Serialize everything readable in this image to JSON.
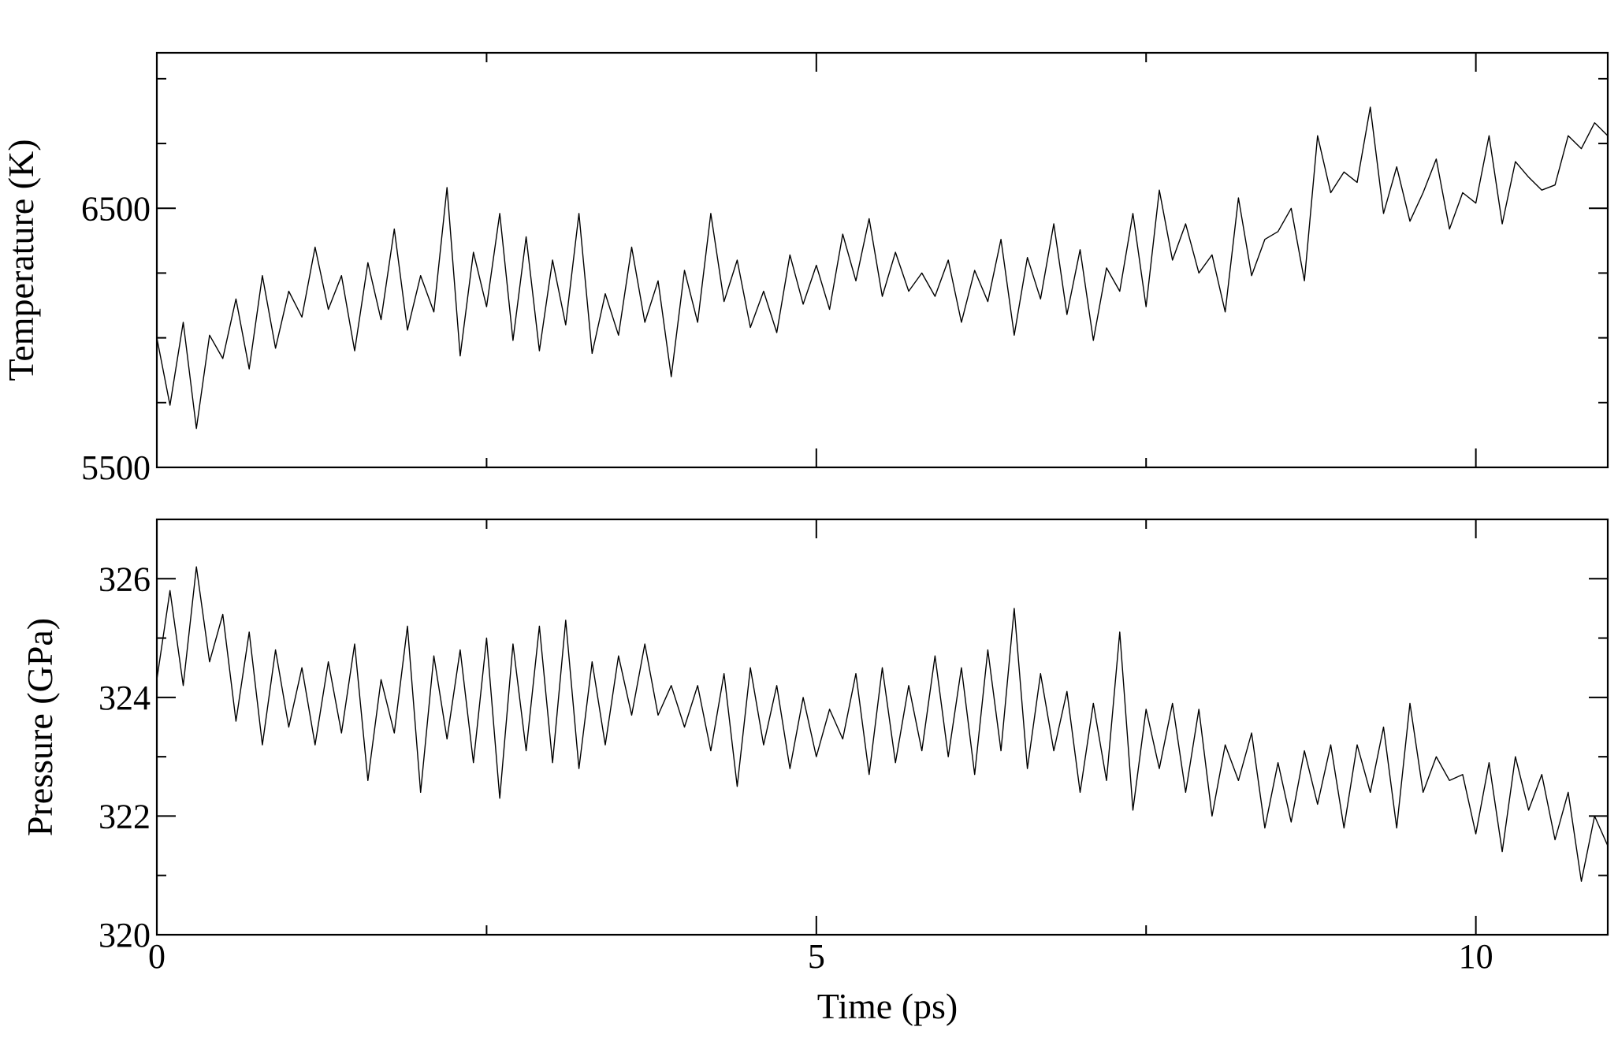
{
  "chart_data": [
    {
      "type": "line",
      "title": "",
      "xlabel": "",
      "ylabel": "Temperature (K)",
      "xlim": [
        0,
        11
      ],
      "ylim": [
        5500,
        7100
      ],
      "x_ticks": [
        0,
        5,
        10
      ],
      "x_tick_labels": [],
      "y_ticks": [
        5500,
        6500
      ],
      "y_tick_labels": [
        "5500",
        "6500"
      ],
      "grid": false,
      "legend": "none",
      "series": [
        {
          "color": "#000000",
          "x": [
            0,
            0.1,
            0.2,
            0.3,
            0.4,
            0.5,
            0.6,
            0.7,
            0.8,
            0.9,
            1.0,
            1.1,
            1.2,
            1.3,
            1.4,
            1.5,
            1.6,
            1.7,
            1.8,
            1.9,
            2.0,
            2.1,
            2.2,
            2.3,
            2.4,
            2.5,
            2.6,
            2.7,
            2.8,
            2.9,
            3.0,
            3.1,
            3.2,
            3.3,
            3.4,
            3.5,
            3.6,
            3.7,
            3.8,
            3.9,
            4.0,
            4.1,
            4.2,
            4.3,
            4.4,
            4.5,
            4.6,
            4.7,
            4.8,
            4.9,
            5.0,
            5.1,
            5.2,
            5.3,
            5.4,
            5.5,
            5.6,
            5.7,
            5.8,
            5.9,
            6.0,
            6.1,
            6.2,
            6.3,
            6.4,
            6.5,
            6.6,
            6.7,
            6.8,
            6.9,
            7.0,
            7.1,
            7.2,
            7.3,
            7.4,
            7.5,
            7.6,
            7.7,
            7.8,
            7.9,
            8.0,
            8.1,
            8.2,
            8.3,
            8.4,
            8.5,
            8.6,
            8.7,
            8.8,
            8.9,
            9.0,
            9.1,
            9.2,
            9.3,
            9.4,
            9.5,
            9.6,
            9.7,
            9.8,
            9.9,
            10.0,
            10.1,
            10.2,
            10.3,
            10.4,
            10.5,
            10.6,
            10.7,
            10.8,
            10.9,
            11.0
          ],
          "y": [
            6000,
            5740,
            6060,
            5650,
            6010,
            5920,
            6150,
            5880,
            6240,
            5960,
            6180,
            6080,
            6350,
            6110,
            6240,
            5950,
            6290,
            6070,
            6420,
            6030,
            6240,
            6100,
            6580,
            5930,
            6330,
            6120,
            6480,
            5990,
            6390,
            5950,
            6300,
            6050,
            6480,
            5940,
            6170,
            6010,
            6350,
            6060,
            6220,
            5850,
            6260,
            6060,
            6480,
            6140,
            6300,
            6040,
            6180,
            6020,
            6320,
            6130,
            6280,
            6110,
            6400,
            6220,
            6460,
            6160,
            6330,
            6180,
            6250,
            6160,
            6300,
            6060,
            6260,
            6140,
            6380,
            6010,
            6310,
            6150,
            6440,
            6090,
            6340,
            5990,
            6270,
            6180,
            6480,
            6120,
            6570,
            6300,
            6440,
            6250,
            6320,
            6100,
            6540,
            6240,
            6380,
            6410,
            6500,
            6220,
            6780,
            6560,
            6640,
            6600,
            6890,
            6480,
            6660,
            6450,
            6560,
            6690,
            6420,
            6560,
            6520,
            6780,
            6440,
            6680,
            6620,
            6570,
            6590,
            6780,
            6730,
            6830,
            6780
          ]
        }
      ]
    },
    {
      "type": "line",
      "title": "",
      "xlabel": "Time (ps)",
      "ylabel": "Pressure (GPa)",
      "xlim": [
        0,
        11
      ],
      "ylim": [
        320,
        327
      ],
      "x_ticks": [
        0,
        5,
        10
      ],
      "x_tick_labels": [
        "0",
        "5",
        "10"
      ],
      "y_ticks": [
        320,
        322,
        324,
        326
      ],
      "y_tick_labels": [
        "320",
        "322",
        "324",
        "326"
      ],
      "grid": false,
      "legend": "none",
      "series": [
        {
          "color": "#000000",
          "x": [
            0,
            0.1,
            0.2,
            0.3,
            0.4,
            0.5,
            0.6,
            0.7,
            0.8,
            0.9,
            1.0,
            1.1,
            1.2,
            1.3,
            1.4,
            1.5,
            1.6,
            1.7,
            1.8,
            1.9,
            2.0,
            2.1,
            2.2,
            2.3,
            2.4,
            2.5,
            2.6,
            2.7,
            2.8,
            2.9,
            3.0,
            3.1,
            3.2,
            3.3,
            3.4,
            3.5,
            3.6,
            3.7,
            3.8,
            3.9,
            4.0,
            4.1,
            4.2,
            4.3,
            4.4,
            4.5,
            4.6,
            4.7,
            4.8,
            4.9,
            5.0,
            5.1,
            5.2,
            5.3,
            5.4,
            5.5,
            5.6,
            5.7,
            5.8,
            5.9,
            6.0,
            6.1,
            6.2,
            6.3,
            6.4,
            6.5,
            6.6,
            6.7,
            6.8,
            6.9,
            7.0,
            7.1,
            7.2,
            7.3,
            7.4,
            7.5,
            7.6,
            7.7,
            7.8,
            7.9,
            8.0,
            8.1,
            8.2,
            8.3,
            8.4,
            8.5,
            8.6,
            8.7,
            8.8,
            8.9,
            9.0,
            9.1,
            9.2,
            9.3,
            9.4,
            9.5,
            9.6,
            9.7,
            9.8,
            9.9,
            10.0,
            10.1,
            10.2,
            10.3,
            10.4,
            10.5,
            10.6,
            10.7,
            10.8,
            10.9,
            11.0
          ],
          "y": [
            324.3,
            325.8,
            324.2,
            326.2,
            324.6,
            325.4,
            323.6,
            325.1,
            323.2,
            324.8,
            323.5,
            324.5,
            323.2,
            324.6,
            323.4,
            324.9,
            322.6,
            324.3,
            323.4,
            325.2,
            322.4,
            324.7,
            323.3,
            324.8,
            322.9,
            325.0,
            322.3,
            324.9,
            323.1,
            325.2,
            322.9,
            325.3,
            322.8,
            324.6,
            323.2,
            324.7,
            323.7,
            324.9,
            323.7,
            324.2,
            323.5,
            324.2,
            323.1,
            324.4,
            322.5,
            324.5,
            323.2,
            324.2,
            322.8,
            324.0,
            323.0,
            323.8,
            323.3,
            324.4,
            322.7,
            324.5,
            322.9,
            324.2,
            323.1,
            324.7,
            323.0,
            324.5,
            322.7,
            324.8,
            323.1,
            325.5,
            322.8,
            324.4,
            323.1,
            324.1,
            322.4,
            323.9,
            322.6,
            325.1,
            322.1,
            323.8,
            322.8,
            323.9,
            322.4,
            323.8,
            322.0,
            323.2,
            322.6,
            323.4,
            321.8,
            322.9,
            321.9,
            323.1,
            322.2,
            323.2,
            321.8,
            323.2,
            322.4,
            323.5,
            321.8,
            323.9,
            322.4,
            323.0,
            322.6,
            322.7,
            321.7,
            322.9,
            321.4,
            323.0,
            322.1,
            322.7,
            321.6,
            322.4,
            320.9,
            322.0,
            321.5
          ]
        }
      ]
    }
  ]
}
